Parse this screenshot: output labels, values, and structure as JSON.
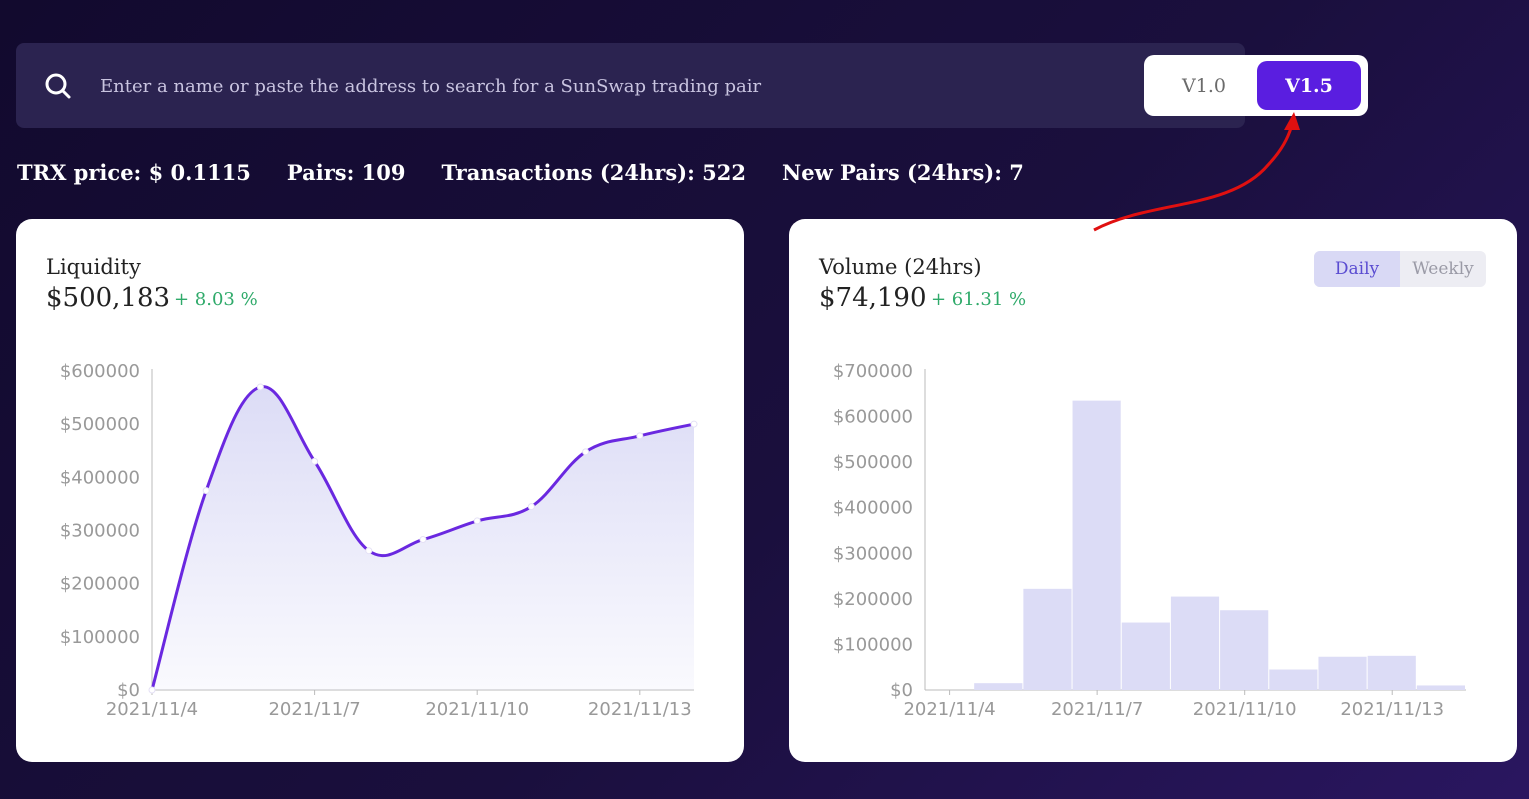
{
  "search": {
    "placeholder": "Enter a name or paste the address to search for a SunSwap trading pair"
  },
  "version_toggle": {
    "options": [
      "V1.0",
      "V1.5"
    ],
    "selected": "V1.5"
  },
  "stats": {
    "trx_price": "TRX price: $ 0.1115",
    "pairs": "Pairs: 109",
    "transactions": "Transactions (24hrs): 522",
    "new_pairs": "New Pairs (24hrs): 7"
  },
  "liquidity": {
    "title": "Liquidity",
    "value": "$500,183",
    "change": "+ 8.03 %"
  },
  "volume": {
    "title": "Volume (24hrs)",
    "value": "$74,190",
    "change": "+ 61.31 %",
    "tabs": [
      "Daily",
      "Weekly"
    ],
    "active_tab": "Daily"
  },
  "colors": {
    "accent": "#5a1ee0",
    "line": "#6a28e0",
    "area": "#dcdcf6",
    "bar": "#dcdcf6",
    "positive": "#2faa6a",
    "annotation_arrow": "#e01010"
  },
  "chart_data": [
    {
      "type": "area",
      "title": "Liquidity",
      "x": [
        "2021/11/4",
        "2021/11/5",
        "2021/11/6",
        "2021/11/7",
        "2021/11/8",
        "2021/11/9",
        "2021/11/10",
        "2021/11/11",
        "2021/11/12",
        "2021/11/13",
        "2021/11/14"
      ],
      "values": [
        0,
        375000,
        570000,
        430000,
        262000,
        283000,
        318000,
        345000,
        448000,
        478000,
        500183
      ],
      "ylim": [
        0,
        600000
      ],
      "y_ticks": [
        "$0",
        "$100000",
        "$200000",
        "$300000",
        "$400000",
        "$500000",
        "$600000"
      ],
      "x_tick_labels": [
        "2021/11/4",
        "2021/11/7",
        "2021/11/10",
        "2021/11/13"
      ],
      "smooth": true
    },
    {
      "type": "bar",
      "title": "Volume (24hrs)",
      "categories": [
        "2021/11/4",
        "2021/11/5",
        "2021/11/6",
        "2021/11/7",
        "2021/11/8",
        "2021/11/9",
        "2021/11/10",
        "2021/11/11",
        "2021/11/12",
        "2021/11/13",
        "2021/11/14"
      ],
      "values": [
        0,
        15000,
        222000,
        635000,
        148000,
        205000,
        175000,
        45000,
        73000,
        75000,
        10000
      ],
      "ylim": [
        0,
        700000
      ],
      "y_ticks": [
        "$0",
        "$100000",
        "$200000",
        "$300000",
        "$400000",
        "$500000",
        "$600000",
        "$700000"
      ],
      "x_tick_labels": [
        "2021/11/4",
        "2021/11/7",
        "2021/11/10",
        "2021/11/13"
      ]
    }
  ]
}
